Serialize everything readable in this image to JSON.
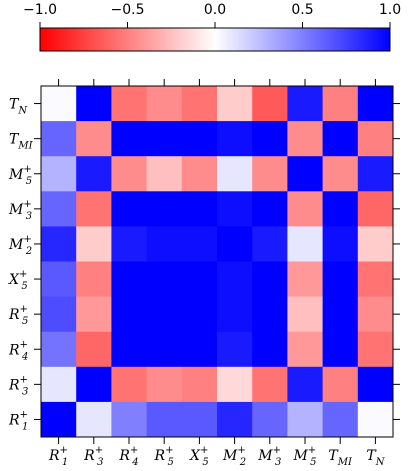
{
  "chart_data": {
    "type": "heatmap",
    "title": "",
    "xlabel": "",
    "ylabel": "",
    "colorbar": {
      "range": [
        -1.0,
        1.0
      ],
      "ticks": [
        "−1.0",
        "−0.5",
        "0.0",
        "0.5",
        "1.0"
      ],
      "tick_values": [
        -1.0,
        -0.5,
        0.0,
        0.5,
        1.0
      ],
      "colors": {
        "negative": "#ff0000",
        "zero": "#ffffff",
        "positive": "#0000ff"
      },
      "placement": "top"
    },
    "x_labels": [
      {
        "base": "R",
        "sub": "1",
        "sup": "+"
      },
      {
        "base": "R",
        "sub": "3",
        "sup": "+"
      },
      {
        "base": "R",
        "sub": "4",
        "sup": "+"
      },
      {
        "base": "R",
        "sub": "5",
        "sup": "+"
      },
      {
        "base": "X",
        "sub": "5",
        "sup": "+"
      },
      {
        "base": "M",
        "sub": "2",
        "sup": "+"
      },
      {
        "base": "M",
        "sub": "3",
        "sup": "+"
      },
      {
        "base": "M",
        "sub": "5",
        "sup": "+"
      },
      {
        "base": "T",
        "sub": "MI",
        "sup": ""
      },
      {
        "base": "T",
        "sub": "N",
        "sup": ""
      }
    ],
    "y_labels_top_to_bottom": [
      {
        "base": "T",
        "sub": "N",
        "sup": ""
      },
      {
        "base": "T",
        "sub": "MI",
        "sup": ""
      },
      {
        "base": "M",
        "sub": "5",
        "sup": "+"
      },
      {
        "base": "M",
        "sub": "3",
        "sup": "+"
      },
      {
        "base": "M",
        "sub": "2",
        "sup": "+"
      },
      {
        "base": "X",
        "sub": "5",
        "sup": "+"
      },
      {
        "base": "R",
        "sub": "5",
        "sup": "+"
      },
      {
        "base": "R",
        "sub": "4",
        "sup": "+"
      },
      {
        "base": "R",
        "sub": "3",
        "sup": "+"
      },
      {
        "base": "R",
        "sub": "1",
        "sup": "+"
      }
    ],
    "matrix_rows_top_to_bottom": [
      [
        0.02,
        1.0,
        -0.55,
        -0.45,
        -0.55,
        -0.2,
        -0.65,
        0.9,
        -0.5,
        1.0
      ],
      [
        0.6,
        -0.45,
        1.0,
        1.0,
        1.0,
        0.95,
        1.0,
        -0.45,
        1.0,
        -0.5
      ],
      [
        0.3,
        0.9,
        -0.45,
        -0.25,
        -0.45,
        0.1,
        -0.45,
        1.0,
        -0.45,
        0.9
      ],
      [
        0.6,
        -0.55,
        1.0,
        1.0,
        1.0,
        0.95,
        1.0,
        -0.45,
        1.0,
        -0.6
      ],
      [
        0.85,
        -0.2,
        0.9,
        0.95,
        0.95,
        1.0,
        0.9,
        0.1,
        0.95,
        -0.2
      ],
      [
        0.65,
        -0.5,
        1.0,
        1.0,
        1.0,
        0.95,
        1.0,
        -0.4,
        1.0,
        -0.55
      ],
      [
        0.7,
        -0.4,
        1.0,
        1.0,
        1.0,
        0.95,
        1.0,
        -0.25,
        1.0,
        -0.45
      ],
      [
        0.55,
        -0.6,
        1.0,
        1.0,
        1.0,
        0.9,
        1.0,
        -0.4,
        1.0,
        -0.55
      ],
      [
        0.1,
        1.0,
        -0.55,
        -0.45,
        -0.5,
        -0.15,
        -0.55,
        0.9,
        -0.5,
        1.0
      ],
      [
        1.0,
        0.1,
        0.5,
        0.65,
        0.65,
        0.85,
        0.6,
        0.3,
        0.6,
        0.02
      ]
    ]
  }
}
